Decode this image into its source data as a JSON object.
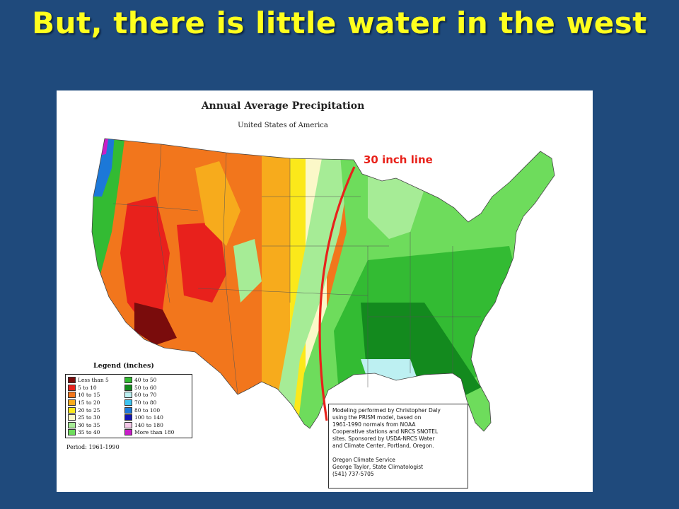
{
  "slide": {
    "title": "But, there is little water in the west"
  },
  "map": {
    "title": "Annual Average Precipitation",
    "subtitle": "United States of America",
    "annotation": "30 inch line",
    "annotation_color": "#e8221b",
    "legend": {
      "title": "Legend (inches)",
      "items": [
        {
          "label": "Less than 5",
          "color": "#7a0c0c"
        },
        {
          "label": "40 to 50",
          "color": "#33bb33"
        },
        {
          "label": "5 to 10",
          "color": "#e8211c"
        },
        {
          "label": "50 to 60",
          "color": "#138a1e"
        },
        {
          "label": "10 to 15",
          "color": "#f2761c"
        },
        {
          "label": "60 to 70",
          "color": "#bdf0f2"
        },
        {
          "label": "15 to 20",
          "color": "#f7ab1c"
        },
        {
          "label": "70 to 80",
          "color": "#3ec4f0"
        },
        {
          "label": "20 to 25",
          "color": "#fbe81a"
        },
        {
          "label": "80 to 100",
          "color": "#1c78d8"
        },
        {
          "label": "25 to 30",
          "color": "#fbf8c8"
        },
        {
          "label": "100 to 140",
          "color": "#1414b4"
        },
        {
          "label": "30 to 35",
          "color": "#a6ec96"
        },
        {
          "label": "140 to 180",
          "color": "#f4c8e8"
        },
        {
          "label": "35 to 40",
          "color": "#6edc5c"
        },
        {
          "label": "More than 180",
          "color": "#c81ec8"
        }
      ],
      "period": "Period: 1961-1990"
    },
    "credits": [
      "Modeling performed by Christopher Daly",
      "using the PRISM model, based on",
      "1961-1990 normals from NOAA",
      "Cooperative stations and NRCS SNOTEL",
      "sites.  Sponsored by USDA-NRCS Water",
      "and Climate Center, Portland, Oregon.",
      "",
      "Oregon Climate Service",
      "George Taylor, State Climatologist",
      "(541) 737-5705"
    ]
  }
}
